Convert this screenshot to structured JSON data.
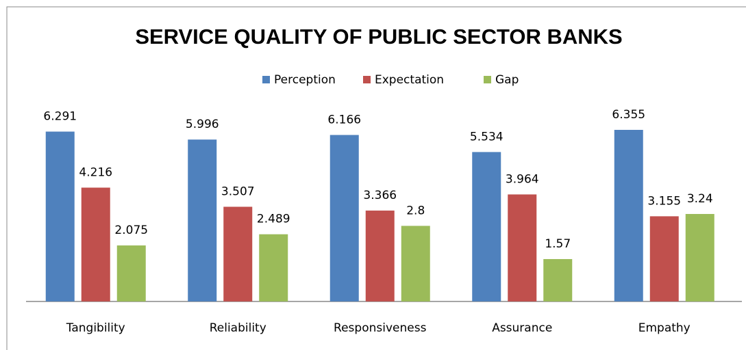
{
  "chart_data": {
    "type": "bar",
    "title": "SERVICE QUALITY OF PUBLIC SECTOR BANKS",
    "categories": [
      "Tangibility",
      "Reliability",
      "Responsiveness",
      "Assurance",
      "Empathy"
    ],
    "series": [
      {
        "name": "Perception",
        "color": "#4f81bd",
        "values": [
          6.291,
          5.996,
          6.166,
          5.534,
          6.355
        ]
      },
      {
        "name": "Expectation",
        "color": "#c0504d",
        "values": [
          4.216,
          3.507,
          3.366,
          3.964,
          3.155
        ]
      },
      {
        "name": "Gap",
        "color": "#9bbb59",
        "values": [
          2.075,
          2.489,
          2.8,
          1.57,
          3.24
        ]
      }
    ],
    "legend": "top"
  }
}
